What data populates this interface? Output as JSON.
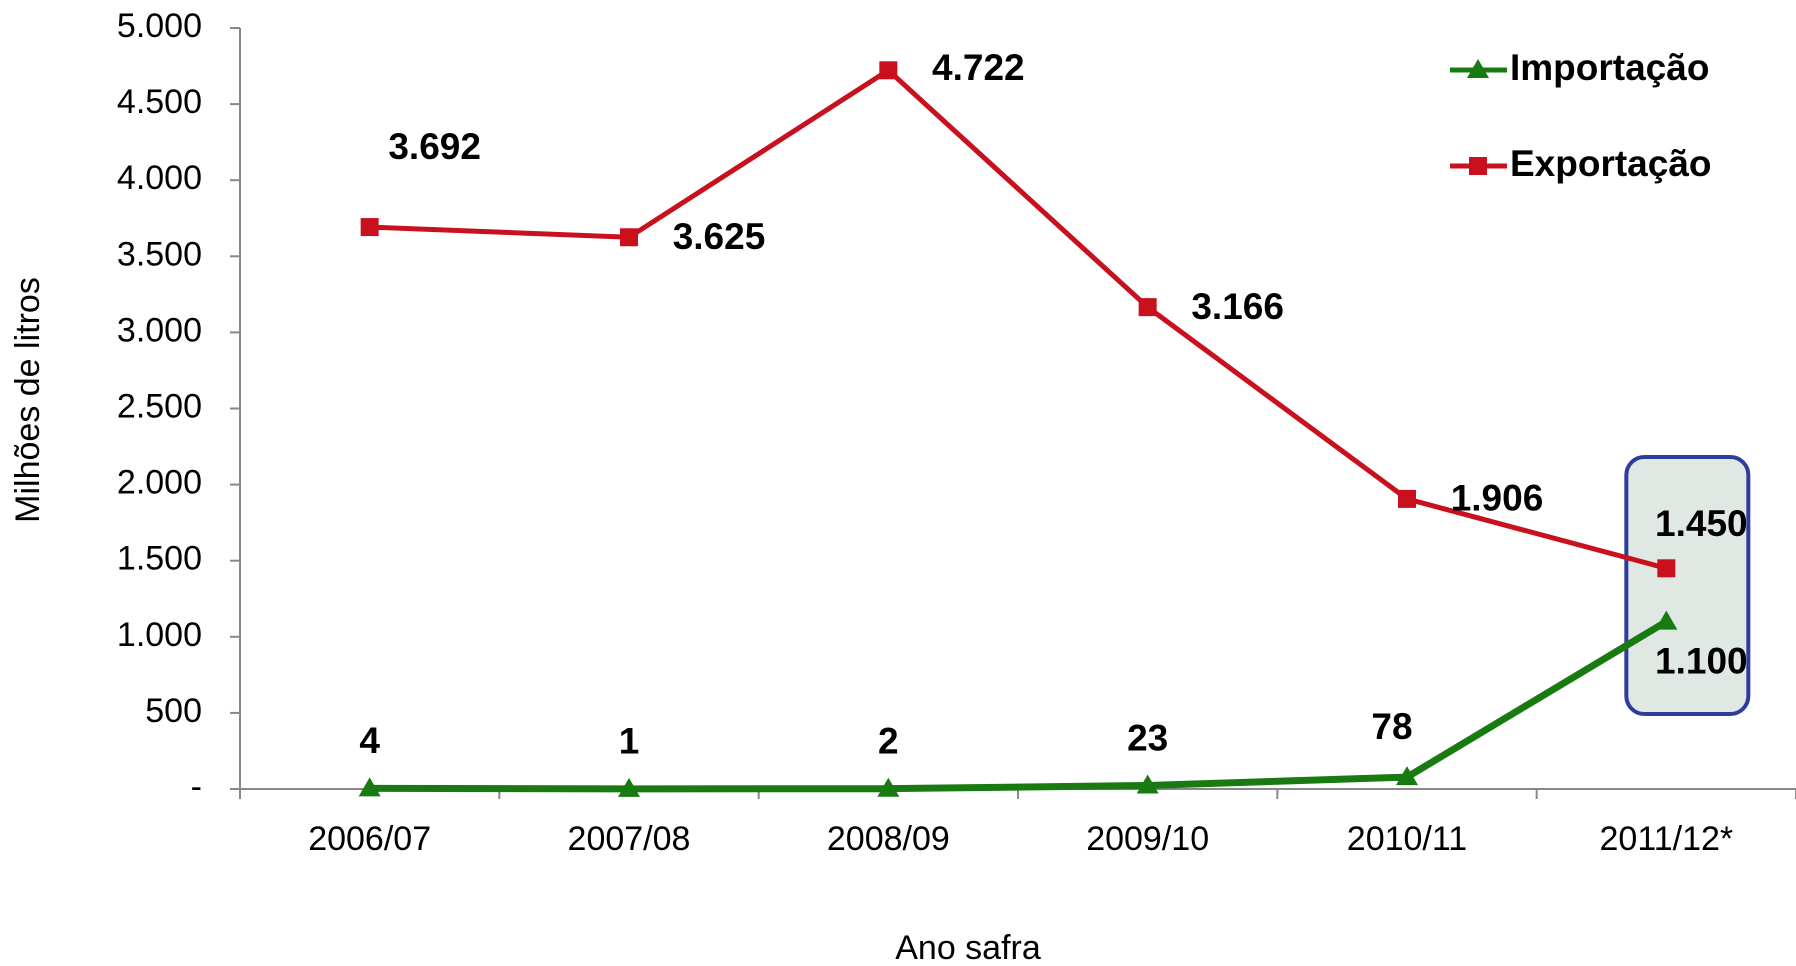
{
  "chart_data": {
    "type": "line",
    "x_label": "Ano safra",
    "y_label": "Milhões de litros",
    "categories": [
      "2006/07",
      "2007/08",
      "2008/09",
      "2009/10",
      "2010/11",
      "2011/12*"
    ],
    "series": [
      {
        "name": "Importação",
        "color": "#1a7a12",
        "marker": "triangle",
        "values": [
          4,
          1,
          2,
          23,
          78,
          1100
        ],
        "value_labels": [
          "4",
          "1",
          "2",
          "23",
          "78",
          "1.100"
        ]
      },
      {
        "name": "Exportação",
        "color": "#c8101e",
        "marker": "square",
        "values": [
          3692,
          3625,
          4722,
          3166,
          1906,
          1450
        ],
        "value_labels": [
          "3.692",
          "3.625",
          "4.722",
          "3.166",
          "1.906",
          "1.450"
        ]
      }
    ],
    "ylim": [
      0,
      5000
    ],
    "yticks": [
      {
        "value": 0,
        "label": "-"
      },
      500,
      {
        "value": 1000,
        "label": "1.000"
      },
      {
        "value": 1500,
        "label": "1.500"
      },
      {
        "value": 2000,
        "label": "2.000"
      },
      {
        "value": 2500,
        "label": "2.500"
      },
      {
        "value": 3000,
        "label": "3.000"
      },
      {
        "value": 3500,
        "label": "3.500"
      },
      {
        "value": 4000,
        "label": "4.000"
      },
      {
        "value": 4500,
        "label": "4.500"
      },
      {
        "value": 5000,
        "label": "5.000"
      }
    ],
    "legend_position": "upper right"
  }
}
